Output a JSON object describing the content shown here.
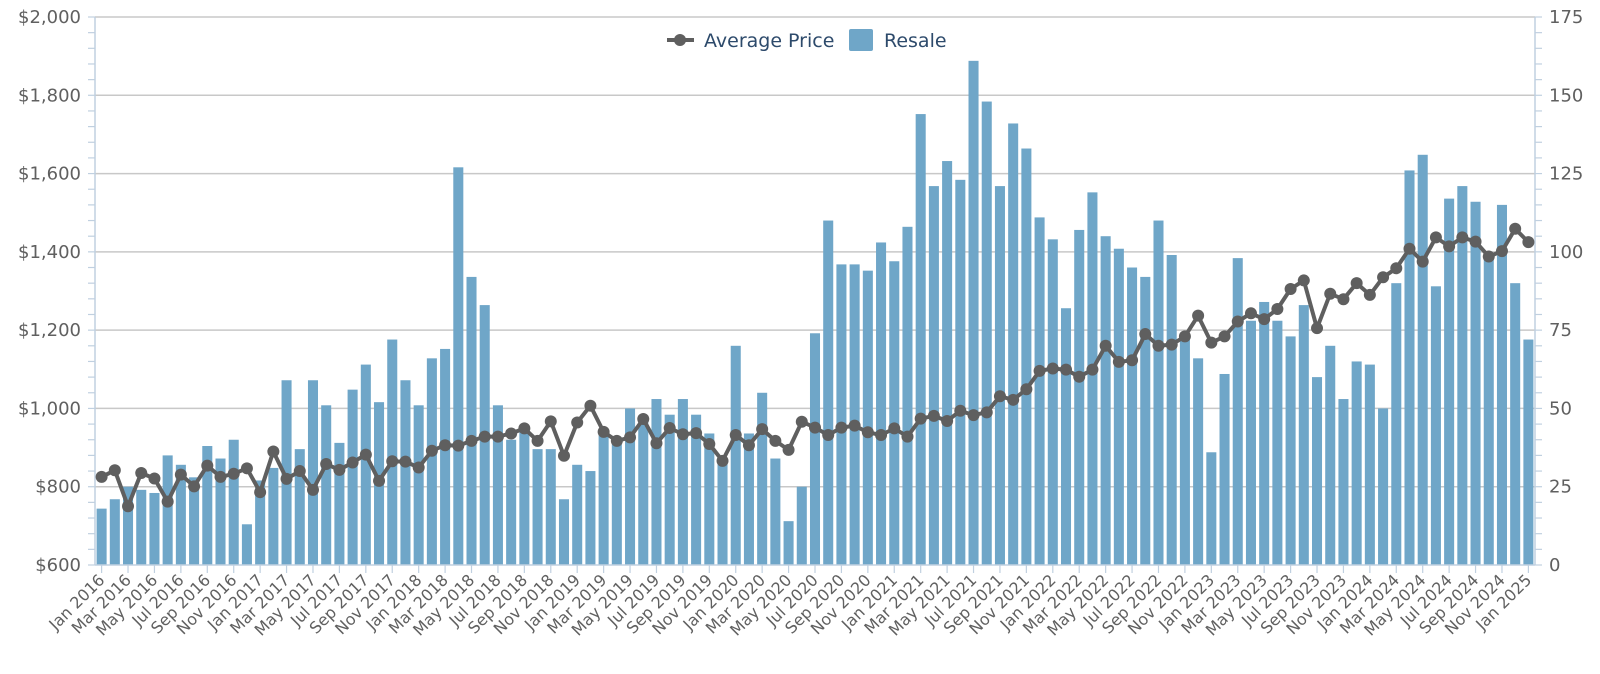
{
  "chart_data": {
    "type": "bar+line",
    "title": "",
    "legend": {
      "position": "top-center",
      "items": [
        "Average Price",
        "Resale"
      ]
    },
    "x_tick_labels": [
      "Jan 2016",
      "Mar 2016",
      "May 2016",
      "Jul 2016",
      "Sep 2016",
      "Nov 2016",
      "Jan 2017",
      "Mar 2017",
      "May 2017",
      "Jul 2017",
      "Sep 2017",
      "Nov 2017",
      "Jan 2018",
      "Mar 2018",
      "May 2018",
      "Jul 2018",
      "Sep 2018",
      "Nov 2018",
      "Jan 2019",
      "Mar 2019",
      "May 2019",
      "Jul 2019",
      "Sep 2019",
      "Nov 2019",
      "Jan 2020",
      "Mar 2020",
      "May 2020",
      "Jul 2020",
      "Sep 2020",
      "Nov 2020",
      "Jan 2021",
      "Mar 2021",
      "May 2021",
      "Jul 2021",
      "Sep 2021",
      "Nov 2021",
      "Jan 2022",
      "Mar 2022",
      "May 2022",
      "Jul 2022",
      "Sep 2022",
      "Nov 2022",
      "Jan 2023",
      "Mar 2023",
      "May 2023",
      "Jul 2023",
      "Sep 2023",
      "Nov 2023",
      "Jan 2024",
      "Mar 2024",
      "May 2024",
      "Jul 2024",
      "Sep 2024",
      "Nov 2024",
      "Jan 2025"
    ],
    "x_range": [
      "Jan 2016",
      "Jan 2025"
    ],
    "x_interval": "monthly",
    "left_axis": {
      "label": "",
      "ylim": [
        600,
        2000
      ],
      "ticks": [
        "$600",
        "$800",
        "$1,000",
        "$1,200",
        "$1,400",
        "$1,600",
        "$1,800",
        "$2,000"
      ],
      "tick_values": [
        600,
        800,
        1000,
        1200,
        1400,
        1600,
        1800,
        2000
      ]
    },
    "right_axis": {
      "label": "",
      "ylim": [
        0,
        175
      ],
      "ticks": [
        "0",
        "25",
        "50",
        "75",
        "100",
        "125",
        "150",
        "175"
      ],
      "tick_values": [
        0,
        25,
        50,
        75,
        100,
        125,
        150,
        175
      ]
    },
    "grid": true,
    "series": [
      {
        "name": "Resale",
        "type": "bar",
        "axis": "right",
        "color": "#6fa6c8",
        "values": [
          18,
          21,
          25,
          24,
          23,
          35,
          32,
          28,
          38,
          34,
          40,
          13,
          27,
          31,
          59,
          37,
          59,
          51,
          39,
          56,
          64,
          52,
          72,
          59,
          51,
          66,
          69,
          127,
          92,
          83,
          51,
          40,
          43,
          37,
          37,
          21,
          32,
          30,
          43,
          40,
          50,
          46,
          53,
          48,
          53,
          48,
          42,
          34,
          70,
          42,
          55,
          34,
          14,
          25,
          74,
          110,
          96,
          96,
          94,
          103,
          97,
          108,
          144,
          121,
          129,
          123,
          161,
          148,
          121,
          141,
          133,
          111,
          104,
          82,
          107,
          119,
          105,
          101,
          95,
          92,
          110,
          99,
          72,
          66,
          36,
          61,
          98,
          78,
          84,
          78,
          73,
          83,
          60,
          70,
          53,
          65,
          64,
          50,
          90,
          126,
          131,
          89,
          117,
          121,
          116,
          98,
          115,
          90,
          72
        ]
      },
      {
        "name": "Average Price",
        "type": "line",
        "axis": "left",
        "color": "#5f5f5f",
        "values": [
          825,
          842,
          750,
          835,
          821,
          762,
          831,
          801,
          854,
          825,
          833,
          847,
          786,
          890,
          820,
          840,
          792,
          858,
          843,
          862,
          882,
          815,
          865,
          864,
          849,
          892,
          906,
          905,
          917,
          928,
          928,
          936,
          949,
          917,
          967,
          879,
          964,
          1007,
          940,
          917,
          926,
          973,
          911,
          950,
          934,
          937,
          909,
          866,
          932,
          906,
          947,
          917,
          894,
          966,
          951,
          932,
          951,
          956,
          939,
          932,
          949,
          928,
          974,
          981,
          968,
          994,
          983,
          990,
          1031,
          1022,
          1049,
          1096,
          1102,
          1099,
          1081,
          1099,
          1160,
          1119,
          1123,
          1190,
          1160,
          1163,
          1184,
          1237,
          1168,
          1184,
          1222,
          1243,
          1228,
          1254,
          1305,
          1327,
          1205,
          1293,
          1279,
          1320,
          1290,
          1335,
          1358,
          1408,
          1375,
          1437,
          1414,
          1437,
          1426,
          1388,
          1402,
          1459,
          1425
        ]
      }
    ]
  }
}
